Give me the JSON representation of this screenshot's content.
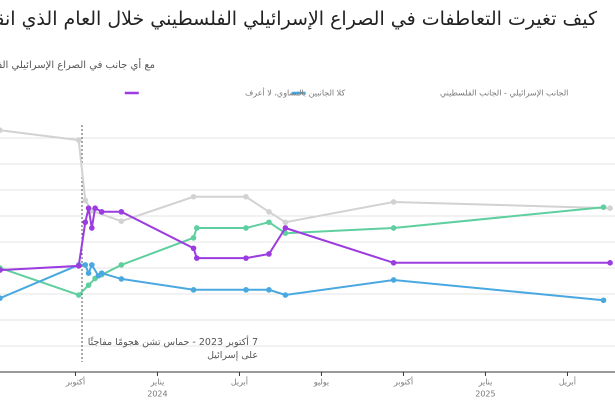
{
  "chart_data": {
    "type": "line",
    "title": "كيف تغيرت التعاطفات في الصراع الإسرائيلي الفلسطيني خلال العام الذي انقضى منذ",
    "subtitle": "مع أي جانب في الصراع الإسرائيلي الفلسطيني",
    "annotation": "7 أكتوبر 2023 - حماس تشن هجومًا مفاجئًا على إسرائيل",
    "event_x": 2023.77,
    "xlim": [
      2023.52,
      2025.395
    ],
    "ylim": [
      0,
      47.5
    ],
    "yticks": [
      5,
      10,
      15,
      20,
      25,
      30,
      35,
      40,
      45
    ],
    "grid": true,
    "xticks": [
      {
        "value": 2023.75,
        "label": "أكتوبر"
      },
      {
        "value": 2024.0,
        "label": "يناير"
      },
      {
        "value": 2024.25,
        "label": "أبريل"
      },
      {
        "value": 2024.5,
        "label": "يوليو"
      },
      {
        "value": 2024.75,
        "label": "أكتوبر"
      },
      {
        "value": 2025.0,
        "label": "يناير"
      },
      {
        "value": 2025.25,
        "label": "أبريل"
      }
    ],
    "year_ticks": [
      2024,
      2025
    ],
    "series": [
      {
        "color": "#d2d2d2",
        "x": [
          2023.52,
          2023.76,
          2023.78,
          2023.8,
          2023.89,
          2024.11,
          2024.27,
          2024.34,
          2024.39,
          2024.72,
          2025.38
        ],
        "values": [
          46.5,
          44.6,
          33,
          31,
          29,
          33.7,
          33.7,
          30.8,
          28.8,
          32.7,
          31.5
        ]
      },
      {
        "color": "#5fcf9f",
        "x": [
          2023.52,
          2023.76,
          2023.79,
          2023.81,
          2023.83,
          2023.89,
          2024.11,
          2024.12,
          2024.27,
          2024.34,
          2024.39,
          2024.72,
          2025.36
        ],
        "values": [
          20,
          14.8,
          16.7,
          18,
          18.7,
          20.6,
          25.8,
          27.7,
          27.7,
          28.8,
          26.7,
          27.7,
          31.7
        ]
      },
      {
        "name": "الجانب الإسرائيلي - الجانب الفلسطيني",
        "color": "#4aa8e0",
        "x": [
          2023.52,
          2023.76,
          2023.78,
          2023.79,
          2023.8,
          2023.82,
          2023.83,
          2023.89,
          2024.11,
          2024.27,
          2024.34,
          2024.39,
          2024.72,
          2025.36
        ],
        "values": [
          14.2,
          20.6,
          20.6,
          19,
          20.6,
          18.5,
          19,
          17.9,
          15.8,
          15.8,
          15.8,
          14.8,
          17.7,
          13.8
        ]
      },
      {
        "name": "كلا الجانبين بالتساوي، لا أعرف",
        "color": "#9b3be0",
        "x": [
          2023.52,
          2023.76,
          2023.78,
          2023.79,
          2023.8,
          2023.81,
          2023.83,
          2023.89,
          2024.11,
          2024.12,
          2024.27,
          2024.34,
          2024.39,
          2024.72,
          2025.38
        ],
        "values": [
          19.6,
          20.4,
          28.8,
          31.5,
          27.7,
          31.5,
          30.8,
          30.8,
          23.8,
          21.9,
          21.9,
          22.7,
          27.7,
          21,
          21
        ]
      }
    ]
  }
}
